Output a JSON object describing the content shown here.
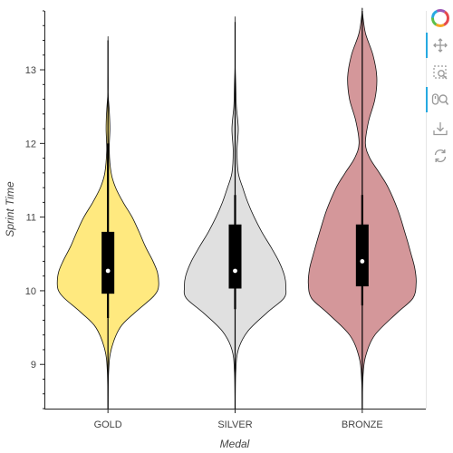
{
  "chart_data": {
    "type": "violin",
    "xlabel": "Medal",
    "ylabel": "Sprint Time",
    "categories": [
      "GOLD",
      "SILVER",
      "BRONZE"
    ],
    "ylim": [
      8.4,
      13.8
    ],
    "yticks": [
      9,
      10,
      11,
      12,
      13
    ],
    "grid": false,
    "series": [
      {
        "name": "GOLD",
        "color": "#ffe97f",
        "extent": [
          8.4,
          13.4
        ],
        "box": {
          "q1": 9.96,
          "median": 10.27,
          "q3": 10.8,
          "whisker_low": 9.63,
          "whisker_high": 12.0
        },
        "density": [
          [
            8.4,
            0.0
          ],
          [
            8.9,
            0.01
          ],
          [
            9.2,
            0.05
          ],
          [
            9.5,
            0.19
          ],
          [
            9.7,
            0.42
          ],
          [
            9.9,
            0.69
          ],
          [
            10.0,
            0.78
          ],
          [
            10.1,
            0.8
          ],
          [
            10.25,
            0.78
          ],
          [
            10.4,
            0.71
          ],
          [
            10.6,
            0.59
          ],
          [
            10.8,
            0.49
          ],
          [
            11.0,
            0.38
          ],
          [
            11.2,
            0.24
          ],
          [
            11.4,
            0.12
          ],
          [
            11.6,
            0.05
          ],
          [
            11.9,
            0.02
          ],
          [
            12.2,
            0.03
          ],
          [
            12.45,
            0.02
          ],
          [
            12.7,
            0.0
          ],
          [
            13.0,
            0.0
          ],
          [
            13.4,
            0.0
          ]
        ]
      },
      {
        "name": "SILVER",
        "color": "#e0e0e0",
        "extent": [
          8.4,
          13.65
        ],
        "box": {
          "q1": 10.03,
          "median": 10.27,
          "q3": 10.9,
          "whisker_low": 9.75,
          "whisker_high": 11.3
        },
        "density": [
          [
            8.4,
            0.0
          ],
          [
            8.9,
            0.01
          ],
          [
            9.2,
            0.05
          ],
          [
            9.45,
            0.2
          ],
          [
            9.7,
            0.5
          ],
          [
            9.9,
            0.77
          ],
          [
            10.05,
            0.8
          ],
          [
            10.2,
            0.78
          ],
          [
            10.4,
            0.69
          ],
          [
            10.6,
            0.56
          ],
          [
            10.8,
            0.42
          ],
          [
            11.0,
            0.3
          ],
          [
            11.2,
            0.2
          ],
          [
            11.4,
            0.12
          ],
          [
            11.6,
            0.05
          ],
          [
            11.9,
            0.03
          ],
          [
            12.2,
            0.05
          ],
          [
            12.5,
            0.02
          ],
          [
            12.8,
            0.01
          ],
          [
            13.1,
            0.0
          ],
          [
            13.65,
            0.0
          ]
        ]
      },
      {
        "name": "BRONZE",
        "color": "#d4979a",
        "extent": [
          8.4,
          13.8
        ],
        "box": {
          "q1": 10.06,
          "median": 10.4,
          "q3": 10.9,
          "whisker_low": 9.8,
          "whisker_high": 11.3
        },
        "density": [
          [
            8.4,
            0.0
          ],
          [
            8.8,
            0.01
          ],
          [
            9.1,
            0.05
          ],
          [
            9.4,
            0.2
          ],
          [
            9.7,
            0.55
          ],
          [
            9.9,
            0.8
          ],
          [
            10.1,
            0.85
          ],
          [
            10.3,
            0.83
          ],
          [
            10.5,
            0.77
          ],
          [
            10.8,
            0.67
          ],
          [
            11.1,
            0.56
          ],
          [
            11.4,
            0.41
          ],
          [
            11.6,
            0.27
          ],
          [
            11.8,
            0.12
          ],
          [
            12.0,
            0.05
          ],
          [
            12.3,
            0.1
          ],
          [
            12.6,
            0.2
          ],
          [
            12.9,
            0.23
          ],
          [
            13.2,
            0.17
          ],
          [
            13.5,
            0.05
          ],
          [
            13.8,
            0.0
          ]
        ]
      }
    ]
  },
  "toolbar": {
    "tools": [
      {
        "name": "bokeh-logo",
        "active": false
      },
      {
        "name": "pan-tool",
        "active": true
      },
      {
        "name": "box-zoom-tool",
        "active": false
      },
      {
        "name": "wheel-zoom-tool",
        "active": true
      },
      {
        "name": "save-tool",
        "active": false
      },
      {
        "name": "reset-tool",
        "active": false
      }
    ]
  }
}
